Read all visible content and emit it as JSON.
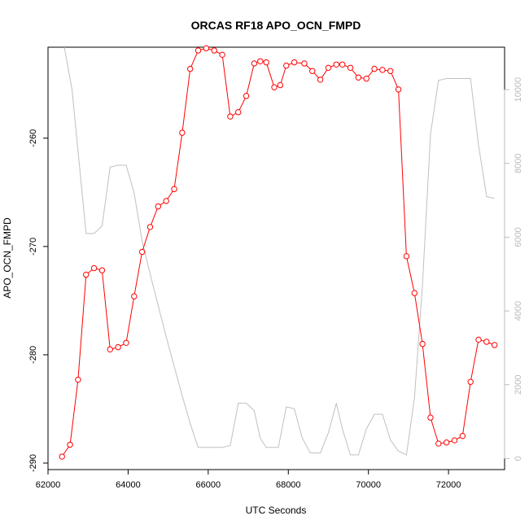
{
  "chart_data": {
    "type": "line",
    "title": "ORCAS RF18 APO_OCN_FMPD",
    "xlabel": "UTC Seconds",
    "ylabel": "APO_OCN_FMPD",
    "xlim": [
      62000,
      73400
    ],
    "ylim": [
      -290.6,
      -251.6
    ],
    "y2lim": [
      -300,
      11150
    ],
    "xticks": [
      62000,
      64000,
      66000,
      68000,
      70000,
      72000
    ],
    "yticks": [
      -290,
      -280,
      -270,
      -260
    ],
    "y2ticks": [
      0,
      2000,
      4000,
      6000,
      8000,
      10000
    ],
    "grid": false,
    "series": [
      {
        "axis": "left",
        "color": "#ff0000",
        "marker": "open-circle",
        "x": [
          62350,
          62550,
          62750,
          62950,
          63150,
          63350,
          63550,
          63750,
          63950,
          64150,
          64350,
          64550,
          64750,
          64950,
          65150,
          65350,
          65550,
          65750,
          65950,
          66150,
          66350,
          66550,
          66750,
          66950,
          67150,
          67300,
          67450,
          67650,
          67800,
          67950,
          68150,
          68400,
          68600,
          68800,
          69000,
          69200,
          69350,
          69550,
          69750,
          69950,
          70150,
          70350,
          70550,
          70750,
          70950,
          71150,
          71350,
          71550,
          71750,
          71950,
          72150,
          72350,
          72550,
          72750,
          72950,
          73150
        ],
        "y": [
          -289.4,
          -288.3,
          -282.3,
          -272.6,
          -272.0,
          -272.2,
          -279.5,
          -279.3,
          -278.9,
          -274.6,
          -270.5,
          -268.2,
          -266.3,
          -265.8,
          -264.7,
          -259.5,
          -253.6,
          -251.9,
          -251.7,
          -251.9,
          -252.3,
          -258.0,
          -257.6,
          -256.1,
          -253.1,
          -252.9,
          -253.0,
          -255.3,
          -255.1,
          -253.3,
          -253.0,
          -253.1,
          -253.8,
          -254.6,
          -253.5,
          -253.2,
          -253.2,
          -253.5,
          -254.4,
          -254.5,
          -253.6,
          -253.7,
          -253.8,
          -255.5,
          -270.9,
          -274.3,
          -279.0,
          -285.8,
          -288.2,
          -288.1,
          -287.9,
          -287.5,
          -282.5,
          -278.6,
          -278.8,
          -279.1
        ]
      },
      {
        "axis": "right",
        "color": "#c0c0c0",
        "x": [
          62350,
          62600,
          62950,
          63150,
          63350,
          63550,
          63750,
          63950,
          64150,
          64350,
          64550,
          64750,
          64950,
          65150,
          65350,
          65550,
          65750,
          65950,
          66150,
          66350,
          66550,
          66750,
          66950,
          67150,
          67300,
          67450,
          67600,
          67750,
          67950,
          68150,
          68350,
          68550,
          68800,
          69000,
          69200,
          69350,
          69550,
          69750,
          69950,
          70150,
          70350,
          70550,
          70750,
          70950,
          71150,
          71350,
          71550,
          71750,
          71950,
          72150,
          72350,
          72550,
          72750,
          72950,
          73150
        ],
        "y": [
          11500,
          10000,
          6100,
          6100,
          6300,
          7900,
          7950,
          7950,
          7200,
          5900,
          5000,
          4150,
          3300,
          2500,
          1700,
          950,
          300,
          300,
          300,
          300,
          350,
          1500,
          1500,
          1300,
          550,
          300,
          300,
          300,
          1400,
          1350,
          550,
          150,
          150,
          700,
          1500,
          800,
          100,
          100,
          800,
          1200,
          1200,
          500,
          200,
          100,
          1650,
          4700,
          8800,
          10250,
          10300,
          10300,
          10300,
          10300,
          8500,
          7100,
          7050
        ]
      }
    ]
  }
}
